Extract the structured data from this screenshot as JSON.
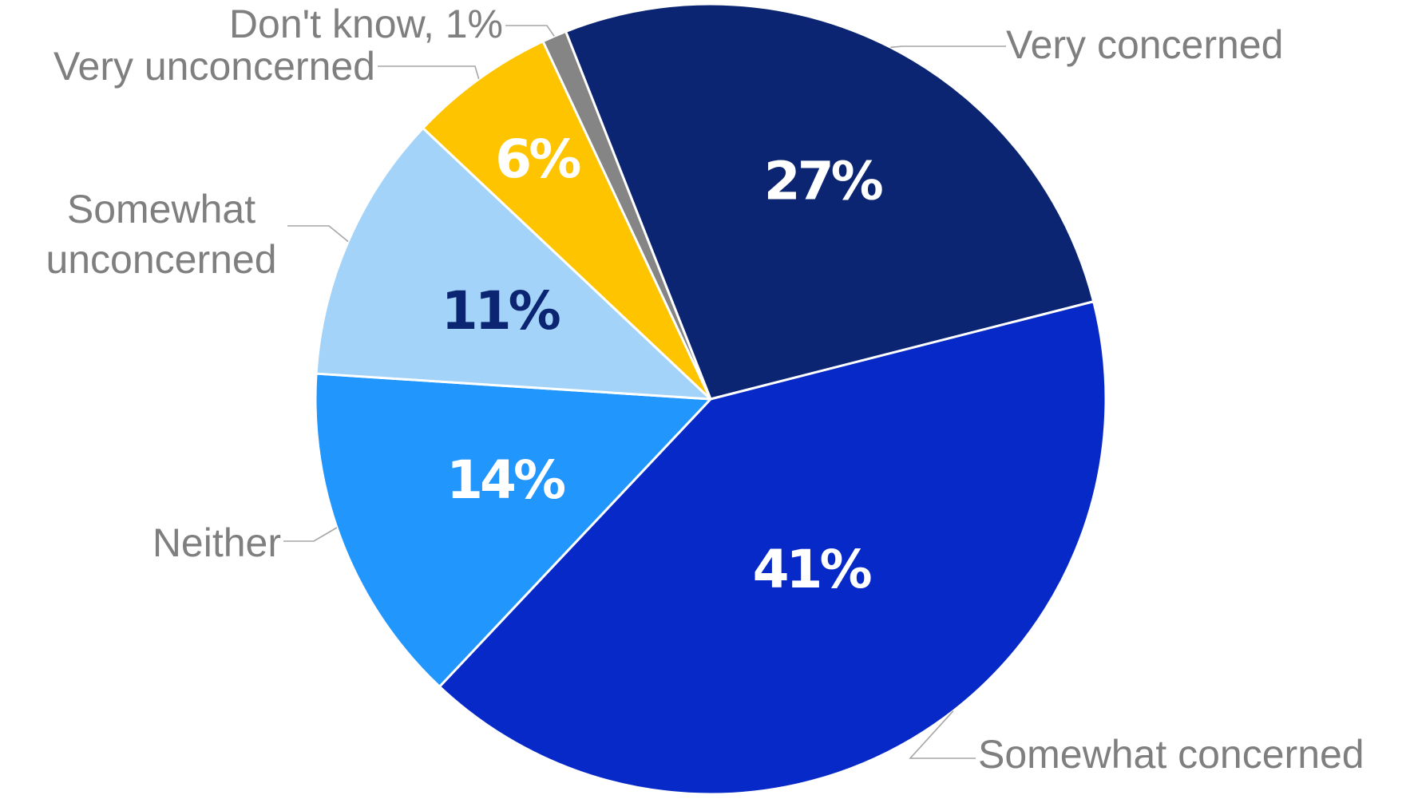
{
  "chart_data": {
    "type": "pie",
    "title": "",
    "start_angle_deg": -21.5,
    "direction": "clockwise",
    "slices": [
      {
        "category": "Very concerned",
        "value": 27,
        "value_label": "27%",
        "color": "#0b2572",
        "label_color": "#ffffff"
      },
      {
        "category": "Somewhat concerned",
        "value": 41,
        "value_label": "41%",
        "color": "#0729c8",
        "label_color": "#ffffff"
      },
      {
        "category": "Neither",
        "value": 14,
        "value_label": "14%",
        "color": "#2196fc",
        "label_color": "#ffffff"
      },
      {
        "category": "Somewhat unconcerned",
        "value": 11,
        "value_label": "11%",
        "color": "#a3d3f8",
        "label_color": "#0b2572"
      },
      {
        "category": "Very unconcerned",
        "value": 6,
        "value_label": "6%",
        "color": "#ffc400",
        "label_color": "#ffffff"
      },
      {
        "category": "Don't know, 1%",
        "value": 1,
        "value_label": "",
        "color": "#858585",
        "label_color": "#ffffff"
      }
    ]
  }
}
